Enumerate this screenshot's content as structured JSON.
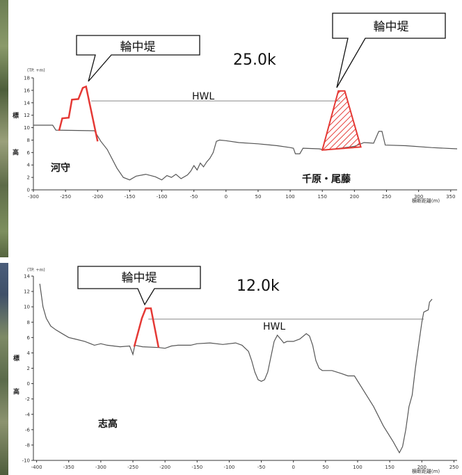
{
  "chart_data": [
    {
      "type": "line",
      "section_label": "25.0k",
      "callout": "輪中堤",
      "hwl_label": "HWL",
      "y_unit_label": "(TP. +m)",
      "y_axis_chars": [
        "標",
        "高"
      ],
      "x_axis_label": "横断距離(m)",
      "left_place": "河守",
      "right_place": "千原・尾藤",
      "xlim": [
        -300,
        360
      ],
      "ylim": [
        0,
        18
      ],
      "x_ticks": [
        "-300",
        "-250",
        "-200",
        "-150",
        "-100",
        "-50",
        "0",
        "50",
        "100",
        "150",
        "200",
        "250",
        "300",
        "350"
      ],
      "y_ticks": [
        "0",
        "2",
        "4",
        "6",
        "8",
        "10",
        "12",
        "14",
        "16",
        "18"
      ],
      "hwl": 14.3,
      "ground": [
        [
          -300,
          10.4
        ],
        [
          -270,
          10.4
        ],
        [
          -265,
          9.6
        ],
        [
          -205,
          9.5
        ],
        [
          -195,
          7.8
        ],
        [
          -185,
          6.5
        ],
        [
          -170,
          3.5
        ],
        [
          -160,
          2
        ],
        [
          -150,
          1.6
        ],
        [
          -140,
          2.2
        ],
        [
          -125,
          2.5
        ],
        [
          -110,
          2.1
        ],
        [
          -100,
          1.6
        ],
        [
          -92,
          2.3
        ],
        [
          -85,
          2
        ],
        [
          -78,
          2.5
        ],
        [
          -70,
          1.8
        ],
        [
          -60,
          2.4
        ],
        [
          -55,
          3
        ],
        [
          -50,
          3.9
        ],
        [
          -45,
          3.2
        ],
        [
          -40,
          4.3
        ],
        [
          -35,
          3.7
        ],
        [
          -30,
          4.5
        ],
        [
          -25,
          5.1
        ],
        [
          -20,
          6
        ],
        [
          -15,
          7.8
        ],
        [
          -10,
          8
        ],
        [
          0,
          7.9
        ],
        [
          20,
          7.6
        ],
        [
          50,
          7.4
        ],
        [
          80,
          7.1
        ],
        [
          100,
          6.8
        ],
        [
          105,
          6.7
        ],
        [
          108,
          5.8
        ],
        [
          115,
          5.8
        ],
        [
          120,
          6.7
        ],
        [
          145,
          6.6
        ],
        [
          150,
          6.5
        ],
        [
          155,
          6.4
        ],
        [
          200,
          7
        ],
        [
          215,
          7.6
        ],
        [
          230,
          7.5
        ],
        [
          238,
          9.4
        ],
        [
          243,
          9.4
        ],
        [
          248,
          7.2
        ],
        [
          280,
          7.1
        ],
        [
          320,
          6.8
        ],
        [
          360,
          6.6
        ]
      ],
      "levee_left": [
        [
          -260,
          9.5
        ],
        [
          -255,
          11.5
        ],
        [
          -245,
          11.6
        ],
        [
          -240,
          14.5
        ],
        [
          -230,
          14.6
        ],
        [
          -223,
          16.4
        ],
        [
          -218,
          16.6
        ],
        [
          -200,
          7.8
        ]
      ],
      "levee_right": [
        [
          150,
          6.4
        ],
        [
          175,
          15.9
        ],
        [
          185,
          15.9
        ],
        [
          210,
          6.9
        ]
      ]
    },
    {
      "type": "line",
      "section_label": "12.0k",
      "callout": "輪中堤",
      "hwl_label": "HWL",
      "y_unit_label": "(TP. +m)",
      "y_axis_chars": [
        "標",
        "高"
      ],
      "x_axis_label": "横断距離(m)",
      "left_place": "志高",
      "xlim": [
        -405,
        255
      ],
      "ylim": [
        -10,
        14
      ],
      "x_ticks": [
        "-400",
        "-350",
        "-300",
        "-250",
        "-200",
        "-150",
        "-100",
        "-50",
        "0",
        "50",
        "100",
        "150",
        "200",
        "250"
      ],
      "y_ticks": [
        "-10",
        "-8",
        "-6",
        "-4",
        "-2",
        "0",
        "2",
        "4",
        "6",
        "8",
        "10",
        "12",
        "14"
      ],
      "hwl": 8.4,
      "ground": [
        [
          -395,
          13
        ],
        [
          -390,
          10
        ],
        [
          -385,
          8.5
        ],
        [
          -378,
          7.5
        ],
        [
          -370,
          7
        ],
        [
          -360,
          6.5
        ],
        [
          -350,
          6
        ],
        [
          -340,
          5.8
        ],
        [
          -325,
          5.5
        ],
        [
          -310,
          5
        ],
        [
          -300,
          5.2
        ],
        [
          -290,
          5
        ],
        [
          -270,
          4.8
        ],
        [
          -255,
          4.9
        ],
        [
          -250,
          3.8
        ],
        [
          -247,
          5
        ],
        [
          -235,
          4.8
        ],
        [
          -210,
          4.7
        ],
        [
          -200,
          4.6
        ],
        [
          -190,
          4.9
        ],
        [
          -180,
          5
        ],
        [
          -160,
          5
        ],
        [
          -150,
          5.2
        ],
        [
          -130,
          5.3
        ],
        [
          -110,
          5.1
        ],
        [
          -90,
          5.3
        ],
        [
          -80,
          5
        ],
        [
          -70,
          4.2
        ],
        [
          -65,
          3
        ],
        [
          -60,
          1.5
        ],
        [
          -55,
          0.5
        ],
        [
          -50,
          0.3
        ],
        [
          -45,
          0.5
        ],
        [
          -40,
          1.5
        ],
        [
          -35,
          3.5
        ],
        [
          -30,
          5.5
        ],
        [
          -25,
          6.3
        ],
        [
          -20,
          5.8
        ],
        [
          -15,
          5.3
        ],
        [
          -10,
          5.5
        ],
        [
          0,
          5.5
        ],
        [
          10,
          5.8
        ],
        [
          20,
          6.5
        ],
        [
          25,
          6.2
        ],
        [
          30,
          5
        ],
        [
          35,
          3
        ],
        [
          40,
          2
        ],
        [
          45,
          1.7
        ],
        [
          60,
          1.7
        ],
        [
          75,
          1.3
        ],
        [
          85,
          1
        ],
        [
          95,
          1
        ],
        [
          110,
          -1
        ],
        [
          125,
          -3
        ],
        [
          140,
          -5.5
        ],
        [
          155,
          -7.5
        ],
        [
          165,
          -9
        ],
        [
          170,
          -8.2
        ],
        [
          175,
          -6
        ],
        [
          180,
          -3
        ],
        [
          185,
          -1.5
        ],
        [
          190,
          2
        ],
        [
          195,
          5
        ],
        [
          200,
          8
        ],
        [
          203,
          9.3
        ],
        [
          205,
          9.4
        ],
        [
          210,
          9.6
        ],
        [
          212,
          10.6
        ],
        [
          216,
          11
        ]
      ],
      "levee": [
        [
          -248,
          4.8
        ],
        [
          -236,
          8.5
        ],
        [
          -230,
          9.8
        ],
        [
          -222,
          9.8
        ],
        [
          -210,
          4.7
        ]
      ]
    }
  ]
}
